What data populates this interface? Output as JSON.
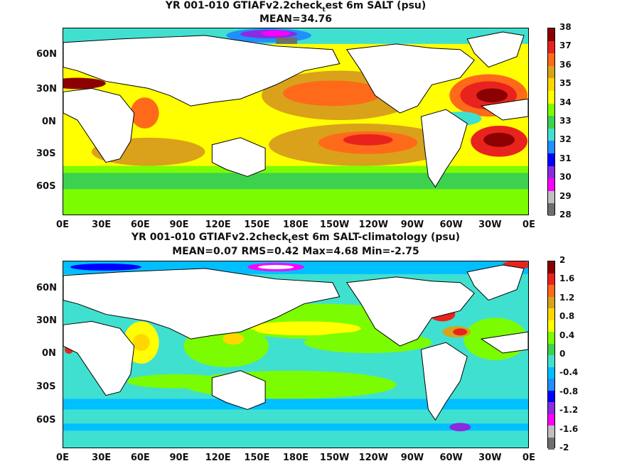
{
  "panels": [
    {
      "title_a": "YR 001-010 GTIAFv2.2check",
      "title_sub": "t",
      "title_b": "est 6m SALT (psu)",
      "stats": "MEAN=34.76",
      "colorbar_labels": [
        "38",
        "37",
        "36",
        "35",
        "34",
        "33",
        "32",
        "31",
        "30",
        "29",
        "28"
      ],
      "colorbar_colors": [
        "#8b0000",
        "#e8231e",
        "#ff6a1a",
        "#d9a21a",
        "#ffd700",
        "#ffff00",
        "#7cfc00",
        "#3cd24f",
        "#40e0d0",
        "#1e90ff",
        "#0000ff",
        "#8a2be2",
        "#ff00ff",
        "#bfbfbf",
        "#6e6e6e"
      ]
    },
    {
      "title_a": "YR 001-010 GTIAFv2.2check",
      "title_sub": "t",
      "title_b": "est 6m SALT-climatology (psu)",
      "stats": "MEAN=0.07   RMS=0.42   Max=4.68   Min=-2.75",
      "colorbar_labels": [
        "2",
        "1.6",
        "1.2",
        "0.8",
        "0.4",
        "0",
        "-0.4",
        "-0.8",
        "-1.2",
        "-1.6",
        "-2"
      ],
      "colorbar_colors": [
        "#8b0000",
        "#e8231e",
        "#ff6a1a",
        "#d9a21a",
        "#ffd700",
        "#ffff00",
        "#7cfc00",
        "#3cd24f",
        "#40e0d0",
        "#00bfff",
        "#1e90ff",
        "#0000ff",
        "#8a2be2",
        "#ff00ff",
        "#bfbfbf",
        "#6e6e6e"
      ]
    }
  ],
  "lat_ticks": [
    "60N",
    "30N",
    "0N",
    "30S",
    "60S"
  ],
  "lon_ticks": [
    "0E",
    "30E",
    "60E",
    "90E",
    "120E",
    "150E",
    "180E",
    "150W",
    "120W",
    "90W",
    "60W",
    "30W",
    "0E"
  ]
}
